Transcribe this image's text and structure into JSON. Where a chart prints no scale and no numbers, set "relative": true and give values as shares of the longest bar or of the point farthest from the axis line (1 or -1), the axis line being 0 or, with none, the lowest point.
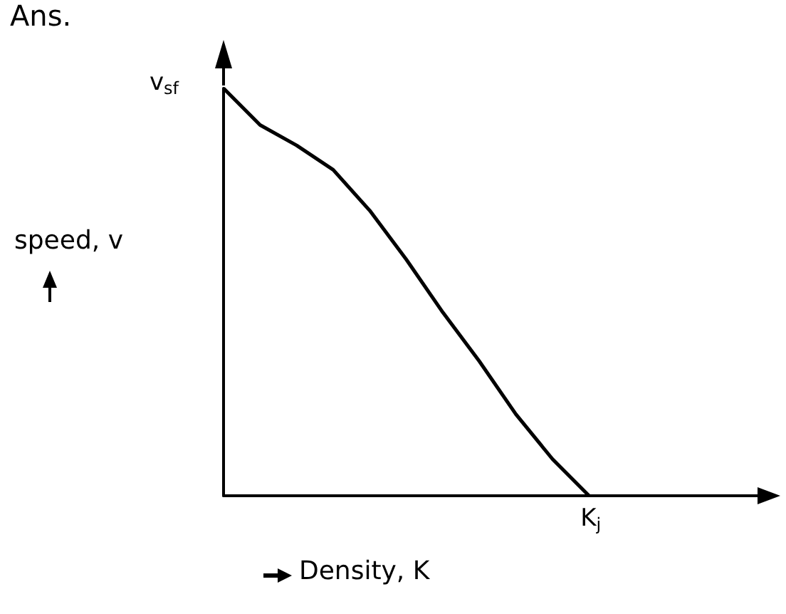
{
  "chart_data": {
    "type": "line",
    "title": "Ans.",
    "xlabel": "Density, K",
    "ylabel": "speed, v",
    "relative": true,
    "categories": [
      null,
      null,
      null,
      null,
      null,
      null,
      null,
      null,
      null,
      null,
      null,
      null,
      null,
      null,
      null,
      null
    ],
    "series": [
      {
        "color": "#000000",
        "values": [
          1.0,
          0.91,
          0.86,
          0.8,
          0.7,
          0.58,
          0.45,
          0.33,
          0.2,
          0.09,
          0,
          null,
          null,
          null,
          null,
          null
        ]
      }
    ],
    "annotations": [
      "v$_{sf}$",
      "K$_{j}$"
    ],
    "grid": false,
    "marker": "none",
    "line_style": "solid"
  }
}
